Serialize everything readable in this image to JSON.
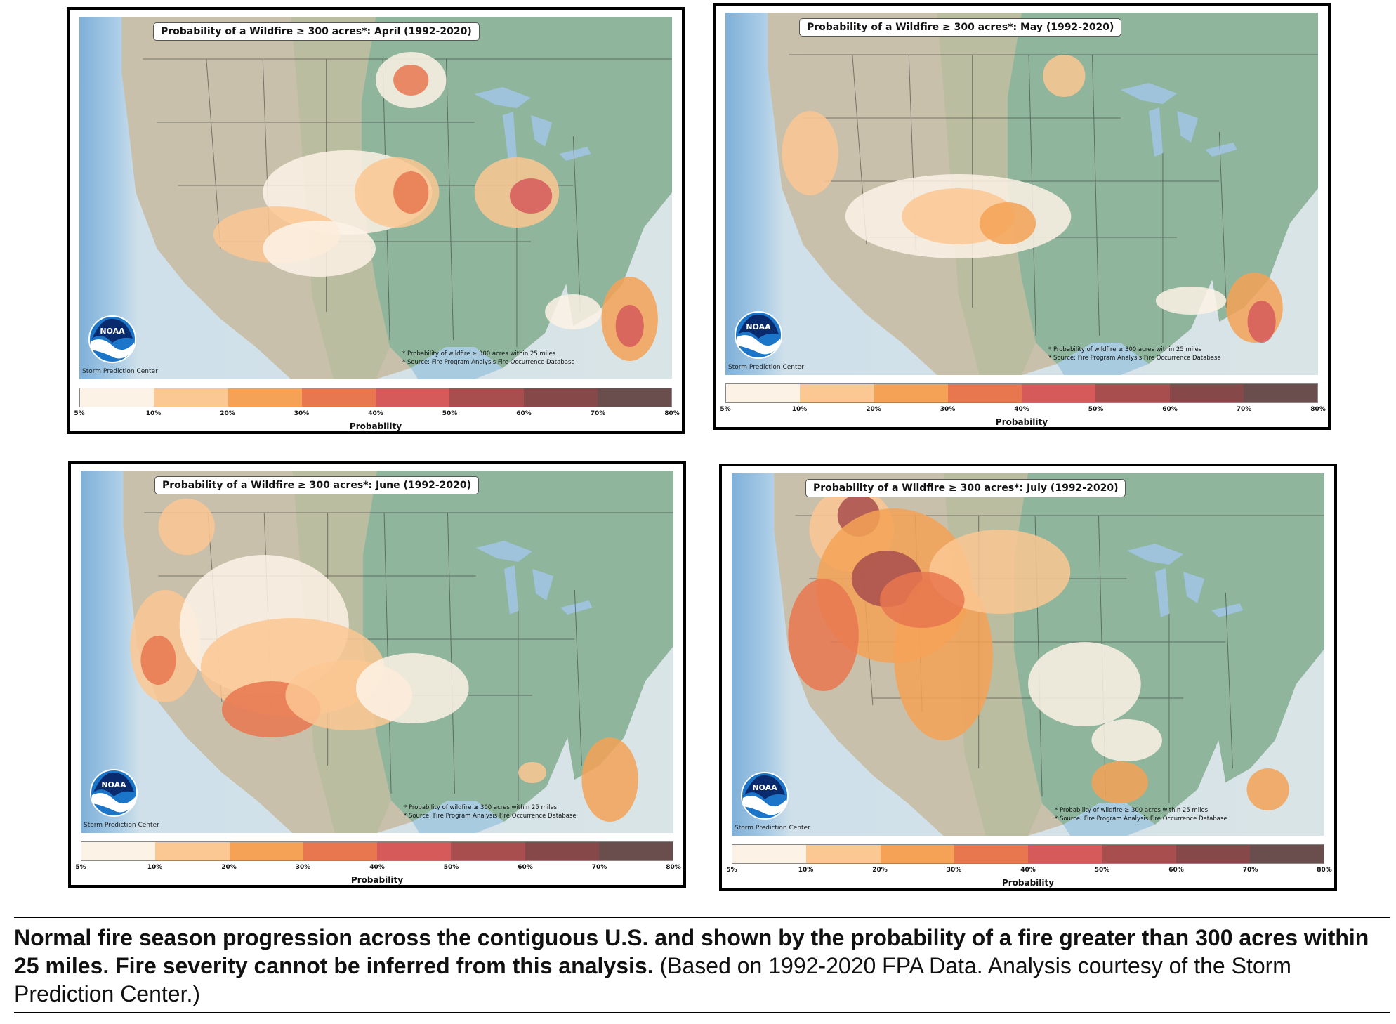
{
  "panels": [
    {
      "title": "Probability of a Wildfire ≥ 300 acres*: April (1992-2020)"
    },
    {
      "title": "Probability of a Wildfire ≥ 300 acres*: May (1992-2020)"
    },
    {
      "title": "Probability of a Wildfire ≥ 300 acres*: June (1992-2020)"
    },
    {
      "title": "Probability of a Wildfire ≥ 300 acres*: July (1992-2020)"
    }
  ],
  "noaa_logo_text": "NOAA",
  "spc_label": "Storm Prediction Center",
  "footnote_1": "* Probability of wildfire ≥ 300 acres within 25 miles",
  "footnote_2": "* Source: Fire Program Analysis Fire Occurrence Database",
  "colorbar": {
    "label": "Probability",
    "ticks": [
      "5%",
      "10%",
      "20%",
      "30%",
      "40%",
      "50%",
      "60%",
      "70%",
      "80%"
    ],
    "colors": [
      "#fdf2e6",
      "#fbc793",
      "#f5a256",
      "#e8774f",
      "#d65a5a",
      "#a84e4e",
      "#864848",
      "#6a4e4e"
    ]
  },
  "caption": {
    "bold": "Normal fire season progression across the contiguous U.S. and shown by the probability of a fire greater than 300 acres within 25 miles. Fire severity cannot be inferred from this analysis.",
    "normal": " (Based on 1992-2020 FPA Data. Analysis courtesy of the Storm Prediction Center.)"
  }
}
